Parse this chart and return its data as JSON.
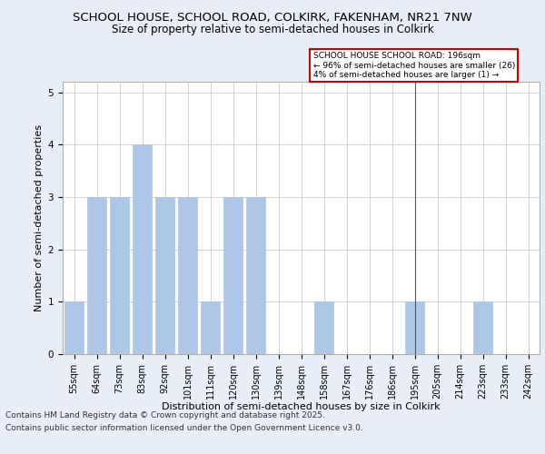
{
  "title1": "SCHOOL HOUSE, SCHOOL ROAD, COLKIRK, FAKENHAM, NR21 7NW",
  "title2": "Size of property relative to semi-detached houses in Colkirk",
  "xlabel": "Distribution of semi-detached houses by size in Colkirk",
  "ylabel": "Number of semi-detached properties",
  "categories": [
    "55sqm",
    "64sqm",
    "73sqm",
    "83sqm",
    "92sqm",
    "101sqm",
    "111sqm",
    "120sqm",
    "130sqm",
    "139sqm",
    "148sqm",
    "158sqm",
    "167sqm",
    "176sqm",
    "186sqm",
    "195sqm",
    "205sqm",
    "214sqm",
    "223sqm",
    "233sqm",
    "242sqm"
  ],
  "values": [
    1,
    3,
    3,
    4,
    3,
    3,
    1,
    3,
    3,
    0,
    0,
    1,
    0,
    0,
    0,
    1,
    0,
    0,
    1,
    0,
    0
  ],
  "bar_color": "#aec6e8",
  "bar_edge_color": "#aec6e8",
  "highlight_index": 15,
  "ref_line_color": "#555555",
  "annotation_text": "SCHOOL HOUSE SCHOOL ROAD: 196sqm\n← 96% of semi-detached houses are smaller (26)\n4% of semi-detached houses are larger (1) →",
  "annotation_box_facecolor": "#ffffff",
  "annotation_box_edgecolor": "#cc0000",
  "footer1": "Contains HM Land Registry data © Crown copyright and database right 2025.",
  "footer2": "Contains public sector information licensed under the Open Government Licence v3.0.",
  "ylim": [
    0,
    5.2
  ],
  "yticks": [
    0,
    1,
    2,
    3,
    4,
    5
  ],
  "bg_color": "#e8eef8",
  "plot_bg_color": "#ffffff",
  "grid_color": "#cccccc",
  "title1_fontsize": 9.5,
  "title2_fontsize": 8.5,
  "xlabel_fontsize": 8,
  "ylabel_fontsize": 8,
  "tick_fontsize": 7,
  "annotation_fontsize": 6.5,
  "footer_fontsize": 6.5
}
